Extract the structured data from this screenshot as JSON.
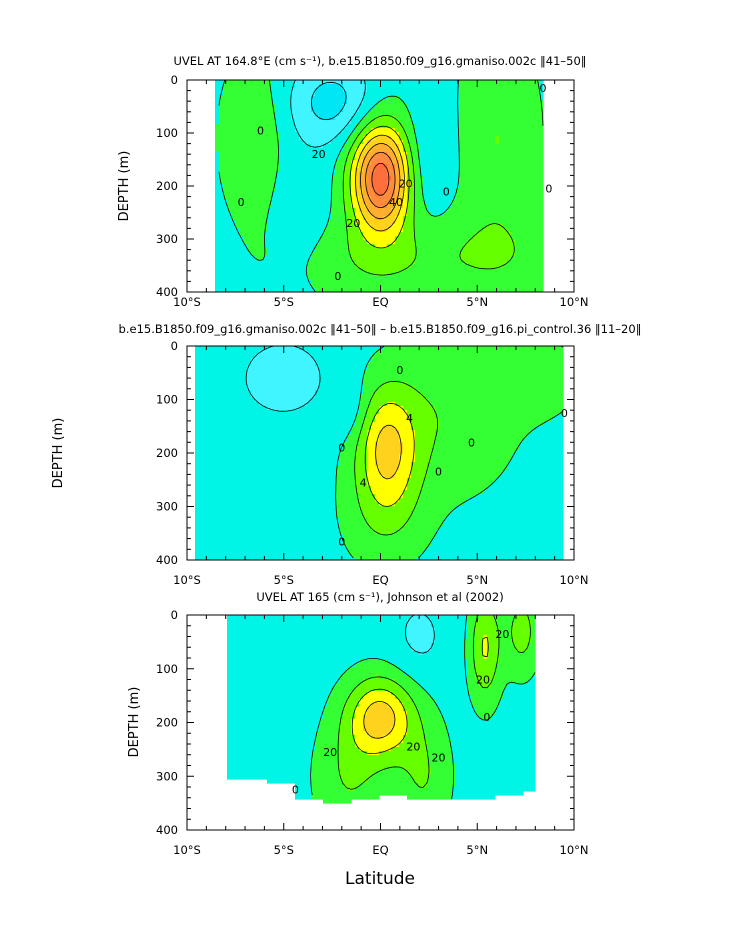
{
  "colors": {
    "levels": [
      "#00e6f5",
      "#40f5ff",
      "#00f5e6",
      "#33ff33",
      "#66ff00",
      "#ffff00",
      "#ffd21e",
      "#ffae2e",
      "#ff8c3c",
      "#ff6f3c"
    ],
    "contour_line": "#000000",
    "frame": "#000000",
    "background": "#ffffff"
  },
  "chart_data": [
    {
      "type": "heatmap",
      "title": "UVEL AT 164.8°E (cm s⁻¹), b.e15.B1850.f09_g16.gmaniso.002c ‖41–50‖",
      "xlabel": "",
      "ylabel": "DEPTH (m)",
      "xlim": [
        -10,
        10
      ],
      "ylim": [
        400,
        0
      ],
      "x_ticks": [
        "10°S",
        "5°S",
        "EQ",
        "5°N",
        "10°N"
      ],
      "y_ticks": [
        "0",
        "100",
        "200",
        "300",
        "400"
      ],
      "data_extent": {
        "lat": [
          -8.5,
          8.5
        ],
        "depth_top": 0,
        "depth_bottom": [
          400,
          400
        ]
      },
      "contour_interval": 10,
      "level_bounds": [
        -20,
        -10,
        0,
        10,
        20,
        30,
        40,
        50,
        60
      ],
      "background_value": -2,
      "features": [
        {
          "lat": 0.0,
          "depth": 185,
          "peak": 68,
          "lat_halfwidth": 1.5,
          "depth_halfwidth": 100
        },
        {
          "lat": -6.6,
          "depth": 110,
          "peak": 12,
          "lat_halfwidth": 1.4,
          "depth_halfwidth": 130
        },
        {
          "lat": 6.0,
          "depth": 110,
          "peak": 12,
          "lat_halfwidth": 1.8,
          "depth_halfwidth": 170
        },
        {
          "lat": -0.5,
          "depth": 340,
          "peak": 10,
          "lat_halfwidth": 4.5,
          "depth_halfwidth": 80
        },
        {
          "lat": 6.0,
          "depth": 330,
          "peak": 10,
          "lat_halfwidth": 4.0,
          "depth_halfwidth": 90
        },
        {
          "lat": -2.5,
          "depth": 40,
          "peak": -22,
          "lat_halfwidth": 2.2,
          "depth_halfwidth": 80
        },
        {
          "lat": 2.5,
          "depth": 150,
          "peak": -10,
          "lat_halfwidth": 1.2,
          "depth_halfwidth": 120
        },
        {
          "lat": -4.0,
          "depth": 250,
          "peak": -6,
          "lat_halfwidth": 1.5,
          "depth_halfwidth": 150
        }
      ],
      "contour_labels": [
        {
          "text": "0",
          "lat": -6.2,
          "depth": 95
        },
        {
          "text": "20",
          "lat": -3.2,
          "depth": 140
        },
        {
          "text": "0",
          "lat": -7.2,
          "depth": 230
        },
        {
          "text": "20",
          "lat": 1.3,
          "depth": 195
        },
        {
          "text": "40",
          "lat": 0.8,
          "depth": 230
        },
        {
          "text": "20",
          "lat": -1.4,
          "depth": 270
        },
        {
          "text": "0",
          "lat": 3.4,
          "depth": 210
        },
        {
          "text": "0",
          "lat": -2.2,
          "depth": 370
        },
        {
          "text": "0",
          "lat": 8.4,
          "depth": 15
        },
        {
          "text": "0",
          "lat": 8.7,
          "depth": 205
        }
      ]
    },
    {
      "type": "heatmap",
      "title": "b.e15.B1850.f09_g16.gmaniso.002c ‖41–50‖ – b.e15.B1850.f09_g16.pi_control.36 ‖11–20‖",
      "xlabel": "",
      "ylabel": "DEPTH (m)",
      "xlim": [
        -10,
        10
      ],
      "ylim": [
        400,
        0
      ],
      "x_ticks": [
        "10°S",
        "5°S",
        "EQ",
        "5°N",
        "10°N"
      ],
      "y_ticks": [
        "0",
        "100",
        "200",
        "300",
        "400"
      ],
      "data_extent": {
        "lat": [
          -9.5,
          9.5
        ],
        "depth_top": 0,
        "depth_bottom": [
          400,
          400
        ]
      },
      "contour_interval": 2,
      "level_bounds": [
        -6,
        -4,
        -2,
        0,
        2,
        4,
        6
      ],
      "background_value": -0.8,
      "features": [
        {
          "lat": 0.3,
          "depth": 190,
          "peak": 6.5,
          "lat_halfwidth": 1.6,
          "depth_halfwidth": 110
        },
        {
          "lat": 0.2,
          "depth": 320,
          "peak": 2.2,
          "lat_halfwidth": 2.2,
          "depth_halfwidth": 100
        },
        {
          "lat": 3.5,
          "depth": 130,
          "peak": 2.5,
          "lat_halfwidth": 3.5,
          "depth_halfwidth": 150
        },
        {
          "lat": 8.0,
          "depth": 60,
          "peak": 2.0,
          "lat_halfwidth": 2.5,
          "depth_halfwidth": 70
        },
        {
          "lat": -5.0,
          "depth": 60,
          "peak": -2.2,
          "lat_halfwidth": 2.5,
          "depth_halfwidth": 80
        },
        {
          "lat": -1.5,
          "depth": 120,
          "peak": -1.6,
          "lat_halfwidth": 0.9,
          "depth_halfwidth": 60
        }
      ],
      "contour_labels": [
        {
          "text": "0",
          "lat": 1.0,
          "depth": 45
        },
        {
          "text": "4",
          "lat": 1.5,
          "depth": 135
        },
        {
          "text": "4",
          "lat": -0.9,
          "depth": 255
        },
        {
          "text": "0",
          "lat": -2.0,
          "depth": 190
        },
        {
          "text": "0",
          "lat": 3.0,
          "depth": 235
        },
        {
          "text": "0",
          "lat": -2.0,
          "depth": 365
        },
        {
          "text": "0",
          "lat": 4.7,
          "depth": 180
        },
        {
          "text": "0",
          "lat": 9.5,
          "depth": 125
        }
      ]
    },
    {
      "type": "heatmap",
      "title": "UVEL AT 165 (cm s⁻¹), Johnson et al (2002)",
      "xlabel": "Latitude",
      "ylabel": "DEPTH (m)",
      "xlim": [
        -10,
        10
      ],
      "ylim": [
        400,
        0
      ],
      "x_ticks": [
        "10°S",
        "5°S",
        "EQ",
        "5°N",
        "10°N"
      ],
      "y_ticks": [
        "0",
        "100",
        "200",
        "300",
        "400"
      ],
      "data_extent": {
        "lat": [
          -8.0,
          8.0
        ],
        "depth_top": 0,
        "depth_bottom": [
          305,
          305,
          315,
          340,
          350,
          345,
          335,
          345,
          345,
          340,
          335,
          330
        ]
      },
      "contour_interval": 10,
      "level_bounds": [
        -20,
        -10,
        0,
        10,
        20,
        30,
        40
      ],
      "background_value": -4,
      "features": [
        {
          "lat": 0.0,
          "depth": 190,
          "peak": 38,
          "lat_halfwidth": 1.7,
          "depth_halfwidth": 75
        },
        {
          "lat": -1.6,
          "depth": 300,
          "peak": 14,
          "lat_halfwidth": 1.8,
          "depth_halfwidth": 110
        },
        {
          "lat": 2.2,
          "depth": 300,
          "peak": 14,
          "lat_halfwidth": 1.4,
          "depth_halfwidth": 110
        },
        {
          "lat": 5.4,
          "depth": 60,
          "peak": 25,
          "lat_halfwidth": 0.8,
          "depth_halfwidth": 100
        },
        {
          "lat": 7.3,
          "depth": 30,
          "peak": 18,
          "lat_halfwidth": 0.9,
          "depth_halfwidth": 80
        },
        {
          "lat": -6.5,
          "depth": 140,
          "peak": -6,
          "lat_halfwidth": 1.8,
          "depth_halfwidth": 120
        },
        {
          "lat": 2.0,
          "depth": 40,
          "peak": -8,
          "lat_halfwidth": 1.5,
          "depth_halfwidth": 80
        }
      ],
      "contour_labels": [
        {
          "text": "20",
          "lat": 6.3,
          "depth": 35
        },
        {
          "text": "20",
          "lat": 5.3,
          "depth": 120
        },
        {
          "text": "0",
          "lat": 5.5,
          "depth": 190
        },
        {
          "text": "20",
          "lat": -2.6,
          "depth": 255
        },
        {
          "text": "20",
          "lat": 1.7,
          "depth": 245
        },
        {
          "text": "20",
          "lat": 3.0,
          "depth": 265
        },
        {
          "text": "0",
          "lat": -4.4,
          "depth": 325
        }
      ]
    }
  ]
}
